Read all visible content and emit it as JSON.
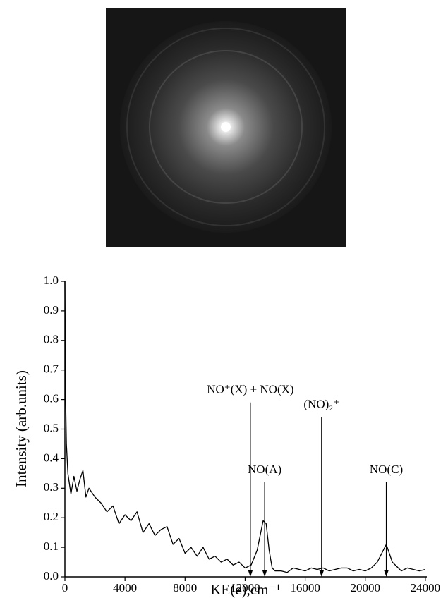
{
  "chart_data": {
    "type": "line",
    "x_label": "KE(e),cm⁻¹",
    "y_label": "Intensity (arb.units)",
    "xlim": [
      0,
      24100
    ],
    "ylim": [
      0,
      1.0
    ],
    "xticks": [
      0,
      4000,
      8000,
      12000,
      16000,
      20000,
      24000
    ],
    "yticks": [
      {
        "value": 0,
        "label": "0.0"
      },
      {
        "value": 0.1,
        "label": "0.1"
      },
      {
        "value": 0.2,
        "label": "0.2"
      },
      {
        "value": 0.3,
        "label": "0.3"
      },
      {
        "value": 0.4,
        "label": "0.4"
      },
      {
        "value": 0.5,
        "label": "0.5"
      },
      {
        "value": 0.6,
        "label": "0.6"
      },
      {
        "value": 0.7,
        "label": "0.7"
      },
      {
        "value": 0.8,
        "label": "0.8"
      },
      {
        "value": 0.9,
        "label": "0.9"
      },
      {
        "value": 1.0,
        "label": "1.0"
      }
    ],
    "color": "#000000",
    "x": [
      0,
      50,
      100,
      200,
      400,
      600,
      800,
      1000,
      1200,
      1400,
      1600,
      2000,
      2400,
      2800,
      3200,
      3600,
      4000,
      4400,
      4800,
      5200,
      5600,
      6000,
      6400,
      6800,
      7200,
      7600,
      8000,
      8400,
      8800,
      9200,
      9600,
      10000,
      10400,
      10800,
      11200,
      11600,
      12000,
      12400,
      12800,
      13000,
      13200,
      13400,
      13600,
      13800,
      14000,
      14400,
      14800,
      15200,
      15600,
      16000,
      16400,
      16800,
      17200,
      17600,
      18000,
      18400,
      18800,
      19200,
      19600,
      20000,
      20400,
      20800,
      21000,
      21200,
      21400,
      21600,
      21800,
      22000,
      22400,
      22800,
      23200,
      23600,
      24000
    ],
    "values": [
      1.0,
      0.6,
      0.45,
      0.35,
      0.28,
      0.34,
      0.29,
      0.33,
      0.36,
      0.27,
      0.3,
      0.27,
      0.25,
      0.22,
      0.24,
      0.18,
      0.21,
      0.19,
      0.22,
      0.15,
      0.18,
      0.14,
      0.16,
      0.17,
      0.11,
      0.13,
      0.08,
      0.1,
      0.07,
      0.1,
      0.06,
      0.07,
      0.05,
      0.06,
      0.04,
      0.05,
      0.03,
      0.04,
      0.09,
      0.14,
      0.19,
      0.18,
      0.09,
      0.03,
      0.02,
      0.02,
      0.015,
      0.03,
      0.025,
      0.02,
      0.03,
      0.025,
      0.03,
      0.02,
      0.025,
      0.03,
      0.03,
      0.02,
      0.025,
      0.02,
      0.03,
      0.05,
      0.07,
      0.09,
      0.11,
      0.08,
      0.05,
      0.04,
      0.02,
      0.03,
      0.025,
      0.02,
      0.025
    ],
    "annotations": [
      {
        "text": "NO⁺(X) + NO(X)",
        "x": 12350,
        "y": 0.59
      },
      {
        "text": "NO(A)",
        "x": 13300,
        "y": 0.32
      },
      {
        "text": "(NO)₂⁺",
        "x": 17090,
        "y": 0.54
      },
      {
        "text": "NO(C)",
        "x": 21400,
        "y": 0.32
      }
    ]
  }
}
